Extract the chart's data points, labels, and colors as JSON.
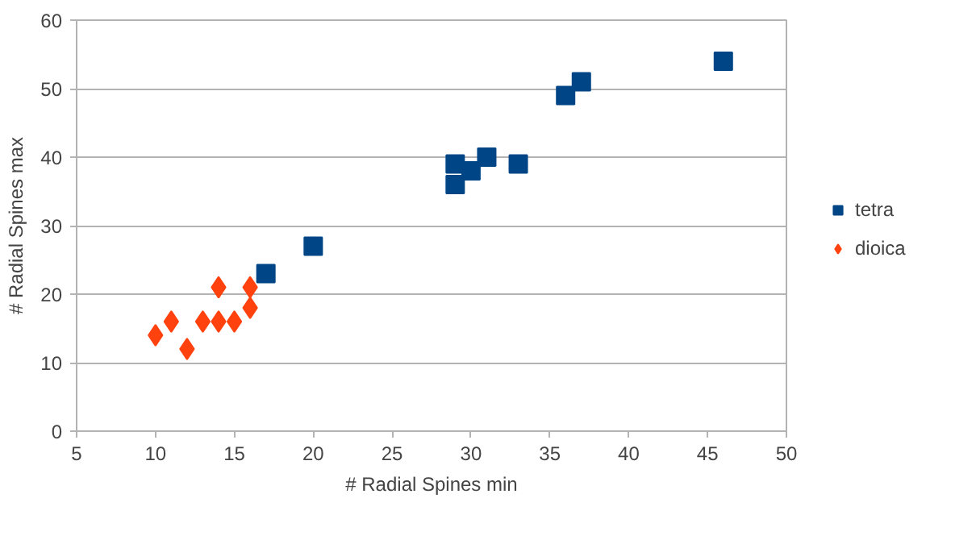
{
  "chart_data": {
    "type": "scatter",
    "xlabel": "# Radial Spines min",
    "ylabel": "# Radial Spines max",
    "xlim": [
      5,
      50
    ],
    "xticks": [
      5,
      10,
      15,
      20,
      25,
      30,
      35,
      40,
      45,
      50
    ],
    "ylim": [
      0,
      60
    ],
    "yticks": [
      0,
      10,
      20,
      30,
      40,
      50,
      60
    ],
    "grid": "y",
    "legend": "right",
    "series": [
      {
        "name": "tetra",
        "color": "#004586",
        "marker": "square",
        "x": [
          17,
          20,
          29,
          29,
          30,
          31,
          33,
          36,
          37,
          46
        ],
        "values": [
          23,
          27,
          39,
          36,
          38,
          40,
          39,
          49,
          51,
          54
        ]
      },
      {
        "name": "dioica",
        "color": "#ff420e",
        "marker": "diamond",
        "x": [
          10,
          11,
          12,
          13,
          14,
          14,
          15,
          16,
          16
        ],
        "values": [
          14,
          16,
          12,
          16,
          21,
          16,
          16,
          21,
          18
        ]
      }
    ]
  }
}
